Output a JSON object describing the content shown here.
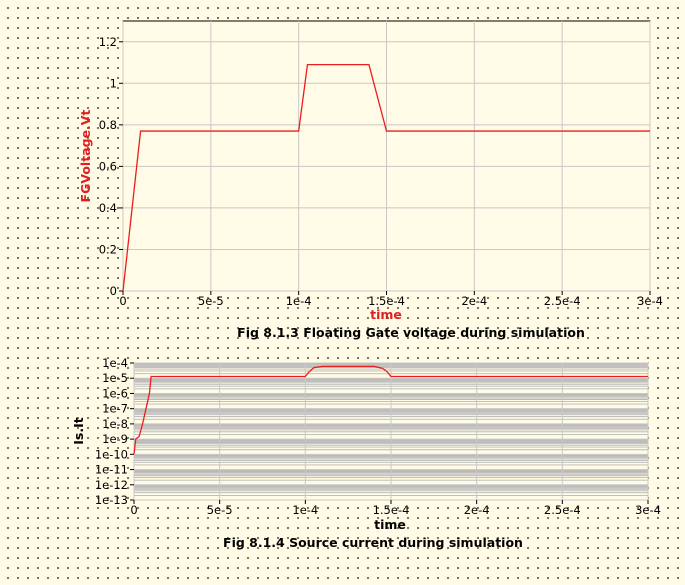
{
  "chart_data": [
    {
      "type": "line",
      "xlabel": "time",
      "ylabel": "FGVoltage.Vt",
      "caption": "Fig 8.1.3 Floating Gate voltage during simulation",
      "xlim": [
        0,
        0.0003
      ],
      "ylim": [
        0,
        1.3
      ],
      "x_tick_labels": [
        "0",
        "5e-5",
        "1e-4",
        "1.5e-4",
        "2e-4",
        "2.5e-4",
        "3e-4"
      ],
      "x_tick_values": [
        0,
        5e-05,
        0.0001,
        0.00015,
        0.0002,
        0.00025,
        0.0003
      ],
      "y_tick_labels": [
        "0",
        "0.2",
        "0.4",
        "0.6",
        "0.8",
        "1",
        "1.2"
      ],
      "y_tick_values": [
        0,
        0.2,
        0.4,
        0.6,
        0.8,
        1.0,
        1.2
      ],
      "grid": true,
      "line_color": "#ee1c1c",
      "series": [
        {
          "x": [
            0,
            1e-05,
            0.0001,
            0.000105,
            0.00014,
            0.00015,
            0.0003
          ],
          "y": [
            0,
            0.77,
            0.77,
            1.09,
            1.09,
            0.77,
            0.77
          ]
        }
      ]
    },
    {
      "type": "line",
      "xlabel": "time",
      "ylabel": "Is.It",
      "caption": "Fig 8.1.4 Source current during simulation",
      "xlim": [
        0,
        0.0003
      ],
      "y_scale": "log",
      "ylim": [
        1e-13,
        0.0001
      ],
      "x_tick_labels": [
        "0",
        "5e-5",
        "1e-4",
        "1.5e-4",
        "2e-4",
        "2.5e-4",
        "3e-4"
      ],
      "x_tick_values": [
        0,
        5e-05,
        0.0001,
        0.00015,
        0.0002,
        0.00025,
        0.0003
      ],
      "y_tick_labels": [
        "1e-4",
        "1e-5",
        "1e-6",
        "1e-7",
        "1e-8",
        "1e-9",
        "1e-10",
        "1e-11",
        "1e-12",
        "1e-13"
      ],
      "y_tick_values": [
        0.0001,
        1e-05,
        1e-06,
        1e-07,
        1e-08,
        1e-09,
        1e-10,
        1e-11,
        1e-12,
        1e-13
      ],
      "grid": true,
      "line_color": "#ee1c1c",
      "series": [
        {
          "x": [
            0,
            1e-06,
            3e-06,
            5e-06,
            7e-06,
            9e-06,
            1e-05,
            0.0001,
            0.000102,
            0.000105,
            0.00011,
            0.00014,
            0.000145,
            0.000148,
            0.00015,
            0.0003
          ],
          "y": [
            1e-10,
            1e-09,
            1.5e-09,
            1e-08,
            1e-07,
            1e-06,
            1.3e-05,
            1.3e-05,
            2.5e-05,
            5e-05,
            6e-05,
            6e-05,
            4.5e-05,
            2.5e-05,
            1.3e-05,
            1.3e-05
          ]
        }
      ]
    }
  ]
}
